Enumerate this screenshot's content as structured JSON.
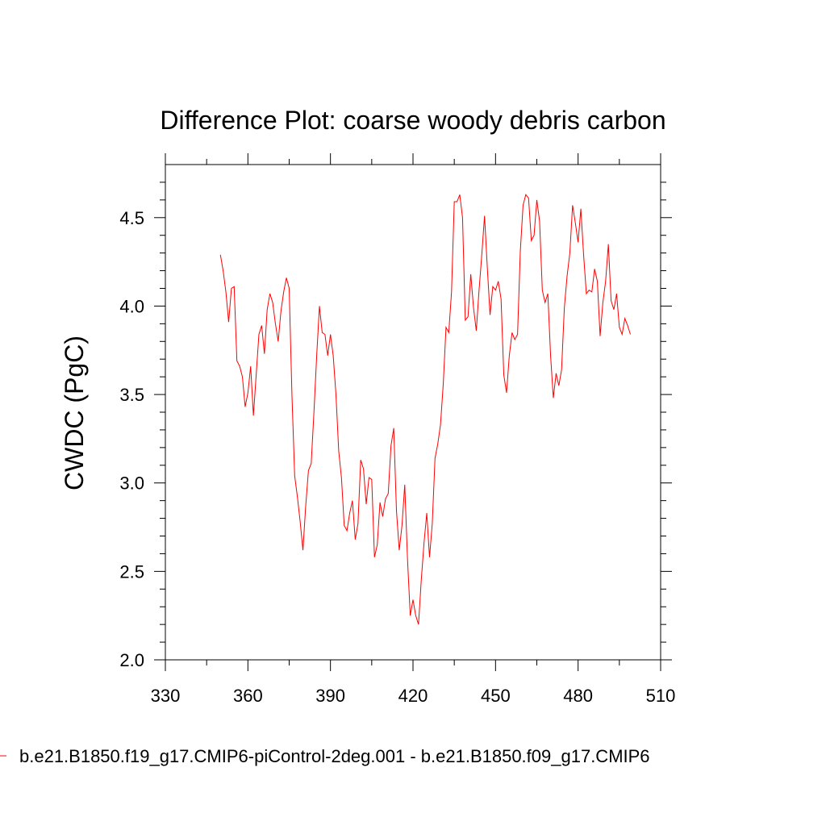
{
  "chart_data": {
    "type": "line",
    "title": "Difference Plot: coarse woody debris carbon",
    "xlabel": "",
    "ylabel": "CWDC  (PgC)",
    "xlim": [
      330,
      510
    ],
    "ylim": [
      2.0,
      4.8
    ],
    "x_ticks": [
      330,
      360,
      390,
      420,
      450,
      480,
      510
    ],
    "y_ticks": [
      2.0,
      2.5,
      3.0,
      3.5,
      4.0,
      4.5
    ],
    "x_tick_labels": [
      "330",
      "360",
      "390",
      "420",
      "450",
      "480",
      "510"
    ],
    "y_tick_labels": [
      "2.0",
      "2.5",
      "3.0",
      "3.5",
      "4.0",
      "4.5"
    ],
    "grid": false,
    "legend_position": "bottom",
    "series": [
      {
        "name": "b.e21.B1850.f19_g17.CMIP6-piControl-2deg.001 - b.e21.B1850.f09_g17.CMIP6",
        "color": "#ff0000",
        "x": [
          350,
          351,
          352,
          353,
          354,
          355,
          356,
          357,
          358,
          359,
          360,
          361,
          362,
          363,
          364,
          365,
          366,
          367,
          368,
          369,
          370,
          371,
          372,
          373,
          374,
          375,
          376,
          377,
          378,
          379,
          380,
          381,
          382,
          383,
          384,
          385,
          386,
          387,
          388,
          389,
          390,
          391,
          392,
          393,
          394,
          395,
          396,
          397,
          398,
          399,
          400,
          401,
          402,
          403,
          404,
          405,
          406,
          407,
          408,
          409,
          410,
          411,
          412,
          413,
          414,
          415,
          416,
          417,
          418,
          419,
          420,
          421,
          422,
          423,
          424,
          425,
          426,
          427,
          428,
          429,
          430,
          431,
          432,
          433,
          434,
          435,
          436,
          437,
          438,
          439,
          440,
          441,
          442,
          443,
          444,
          445,
          446,
          447,
          448,
          449,
          450,
          451,
          452,
          453,
          454,
          455,
          456,
          457,
          458,
          459,
          460,
          461,
          462,
          463,
          464,
          465,
          466,
          467,
          468,
          469,
          470,
          471,
          472,
          473,
          474,
          475,
          476,
          477,
          478,
          479,
          480,
          481,
          482,
          483,
          484,
          485,
          486,
          487,
          488,
          489,
          490,
          491,
          492,
          493,
          494,
          495,
          496,
          497,
          498,
          499
        ],
        "values": [
          4.29,
          4.2,
          4.08,
          3.91,
          4.1,
          4.11,
          3.69,
          3.66,
          3.6,
          3.43,
          3.51,
          3.66,
          3.38,
          3.61,
          3.84,
          3.89,
          3.73,
          3.98,
          4.07,
          4.02,
          3.9,
          3.8,
          3.97,
          4.08,
          4.16,
          4.1,
          3.5,
          3.04,
          2.92,
          2.78,
          2.62,
          2.87,
          3.07,
          3.11,
          3.4,
          3.72,
          4.0,
          3.85,
          3.84,
          3.72,
          3.84,
          3.72,
          3.5,
          3.18,
          3.03,
          2.76,
          2.73,
          2.83,
          2.9,
          2.68,
          2.77,
          3.13,
          3.08,
          2.88,
          3.03,
          3.02,
          2.58,
          2.65,
          2.89,
          2.81,
          2.91,
          2.94,
          3.21,
          3.31,
          2.84,
          2.62,
          2.76,
          2.99,
          2.57,
          2.25,
          2.34,
          2.25,
          2.2,
          2.45,
          2.66,
          2.83,
          2.58,
          2.77,
          3.14,
          3.22,
          3.33,
          3.56,
          3.88,
          3.85,
          4.08,
          4.59,
          4.59,
          4.63,
          4.5,
          3.92,
          3.94,
          4.18,
          3.99,
          3.86,
          4.09,
          4.29,
          4.51,
          4.22,
          3.95,
          4.11,
          4.09,
          4.14,
          4.04,
          3.61,
          3.51,
          3.72,
          3.85,
          3.81,
          3.84,
          4.31,
          4.57,
          4.63,
          4.61,
          4.37,
          4.4,
          4.6,
          4.48,
          4.09,
          4.02,
          4.07,
          3.72,
          3.48,
          3.62,
          3.55,
          3.64,
          3.99,
          4.17,
          4.3,
          4.57,
          4.47,
          4.36,
          4.55,
          4.29,
          4.07,
          4.09,
          4.08,
          4.21,
          4.14,
          3.83,
          4.02,
          4.14,
          4.35,
          4.03,
          3.98,
          4.07,
          3.88,
          3.84,
          3.93,
          3.89,
          3.84
        ]
      }
    ]
  }
}
